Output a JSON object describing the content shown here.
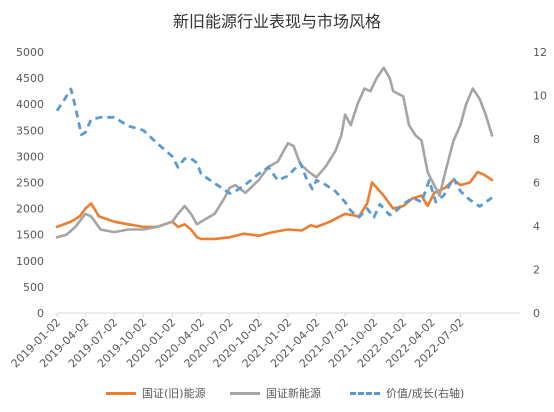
{
  "chart_data": {
    "type": "line",
    "title": "新旧能源行业表现与市场风格",
    "x_ticks": [
      "2019-01-02",
      "2019-04-02",
      "2019-07-02",
      "2019-10-02",
      "2020-01-02",
      "2020-04-02",
      "2020-07-02",
      "2020-10-02",
      "2021-01-02",
      "2021-04-02",
      "2021-07-02",
      "2021-10-02",
      "2022-01-02",
      "2022-04-02",
      "2022-07-02"
    ],
    "y_left": {
      "min": 0,
      "max": 5000,
      "ticks": [
        "0",
        "500",
        "1000",
        "1500",
        "2000",
        "2500",
        "3000",
        "3500",
        "4000",
        "4500",
        "5000"
      ]
    },
    "y_right": {
      "min": 0,
      "max": 12,
      "ticks": [
        "0",
        "2",
        "4",
        "6",
        "8",
        "10",
        "12"
      ]
    },
    "grid": false,
    "legend_position": "bottom",
    "series": [
      {
        "name": "国证(旧)能源",
        "axis": "left",
        "color": "#ED7D31",
        "style": "solid",
        "x": [
          "2019-01-02",
          "2019-02-15",
          "2019-03-15",
          "2019-04-02",
          "2019-04-20",
          "2019-05-15",
          "2019-07-02",
          "2019-08-15",
          "2019-10-02",
          "2019-11-15",
          "2020-01-02",
          "2020-01-20",
          "2020-02-10",
          "2020-03-01",
          "2020-03-20",
          "2020-04-02",
          "2020-05-15",
          "2020-07-02",
          "2020-08-15",
          "2020-10-02",
          "2020-11-15",
          "2021-01-02",
          "2021-02-15",
          "2021-03-15",
          "2021-04-02",
          "2021-05-15",
          "2021-07-02",
          "2021-08-15",
          "2021-09-10",
          "2021-09-25",
          "2021-10-10",
          "2021-11-01",
          "2021-12-01",
          "2022-01-02",
          "2022-02-01",
          "2022-03-01",
          "2022-03-20",
          "2022-04-10",
          "2022-05-15",
          "2022-06-10",
          "2022-07-02",
          "2022-08-01",
          "2022-08-25",
          "2022-09-15",
          "2022-10-10"
        ],
        "values": [
          1650,
          1750,
          1850,
          2000,
          2100,
          1850,
          1750,
          1700,
          1650,
          1650,
          1750,
          1650,
          1700,
          1600,
          1450,
          1420,
          1420,
          1450,
          1520,
          1480,
          1550,
          1600,
          1580,
          1680,
          1650,
          1750,
          1900,
          1850,
          2100,
          2500,
          2400,
          2250,
          2000,
          2050,
          2200,
          2250,
          2050,
          2300,
          2400,
          2550,
          2450,
          2500,
          2700,
          2650,
          2550
        ]
      },
      {
        "name": "国证新能源",
        "axis": "left",
        "color": "#A5A5A5",
        "style": "solid",
        "x": [
          "2019-01-02",
          "2019-02-01",
          "2019-03-01",
          "2019-04-02",
          "2019-04-20",
          "2019-05-20",
          "2019-07-02",
          "2019-08-15",
          "2019-10-02",
          "2019-11-15",
          "2020-01-02",
          "2020-01-20",
          "2020-02-10",
          "2020-03-01",
          "2020-03-20",
          "2020-04-02",
          "2020-05-15",
          "2020-06-15",
          "2020-07-02",
          "2020-07-20",
          "2020-08-20",
          "2020-10-02",
          "2020-11-01",
          "2020-12-01",
          "2021-01-02",
          "2021-01-20",
          "2021-02-10",
          "2021-03-10",
          "2021-04-02",
          "2021-05-01",
          "2021-06-01",
          "2021-06-20",
          "2021-07-02",
          "2021-07-20",
          "2021-08-10",
          "2021-09-01",
          "2021-09-20",
          "2021-10-10",
          "2021-11-01",
          "2021-11-20",
          "2021-12-01",
          "2022-01-02",
          "2022-01-20",
          "2022-02-10",
          "2022-03-01",
          "2022-03-20",
          "2022-04-10",
          "2022-04-27",
          "2022-05-15",
          "2022-06-10",
          "2022-07-02",
          "2022-07-20",
          "2022-08-10",
          "2022-09-01",
          "2022-09-20",
          "2022-10-10"
        ],
        "values": [
          1450,
          1500,
          1650,
          1900,
          1850,
          1600,
          1550,
          1600,
          1600,
          1650,
          1750,
          1900,
          2050,
          1900,
          1700,
          1750,
          1900,
          2200,
          2400,
          2450,
          2300,
          2550,
          2800,
          2900,
          3250,
          3200,
          2850,
          2700,
          2600,
          2800,
          3100,
          3400,
          3800,
          3600,
          4000,
          4300,
          4250,
          4500,
          4700,
          4500,
          4250,
          4150,
          3600,
          3400,
          3300,
          2700,
          2450,
          2250,
          2700,
          3300,
          3600,
          4000,
          4300,
          4100,
          3800,
          3400
        ]
      },
      {
        "name": "价值/成长(右轴)",
        "axis": "right",
        "color": "#5B9BD5",
        "style": "dashed",
        "x": [
          "2019-01-02",
          "2019-01-25",
          "2019-02-15",
          "2019-03-01",
          "2019-03-20",
          "2019-04-02",
          "2019-04-20",
          "2019-05-20",
          "2019-07-02",
          "2019-08-15",
          "2019-10-02",
          "2019-11-15",
          "2020-01-02",
          "2020-01-20",
          "2020-02-10",
          "2020-03-01",
          "2020-03-20",
          "2020-04-02",
          "2020-05-01",
          "2020-06-01",
          "2020-07-02",
          "2020-07-20",
          "2020-08-20",
          "2020-10-02",
          "2020-11-01",
          "2020-12-01",
          "2021-01-02",
          "2021-02-10",
          "2021-03-01",
          "2021-03-20",
          "2021-04-02",
          "2021-05-01",
          "2021-06-01",
          "2021-07-02",
          "2021-07-20",
          "2021-08-15",
          "2021-09-10",
          "2021-10-01",
          "2021-10-20",
          "2021-11-20",
          "2021-12-10",
          "2022-01-02",
          "2022-02-01",
          "2022-03-01",
          "2022-03-25",
          "2022-04-15",
          "2022-05-10",
          "2022-06-10",
          "2022-07-02",
          "2022-08-01",
          "2022-09-01",
          "2022-10-10"
        ],
        "values": [
          9.3,
          9.8,
          10.3,
          9.5,
          8.2,
          8.3,
          8.9,
          9.0,
          9.0,
          8.6,
          8.4,
          7.8,
          7.2,
          6.7,
          7.1,
          7.1,
          6.9,
          6.4,
          6.1,
          5.8,
          5.5,
          5.6,
          5.9,
          6.4,
          6.7,
          6.1,
          6.3,
          6.9,
          6.2,
          5.7,
          6.1,
          5.9,
          5.6,
          5.1,
          4.7,
          4.4,
          4.8,
          4.4,
          5.0,
          4.5,
          4.7,
          5.0,
          5.3,
          5.1,
          6.1,
          5.1,
          5.4,
          6.2,
          5.6,
          5.2,
          4.9,
          5.3
        ]
      }
    ]
  }
}
